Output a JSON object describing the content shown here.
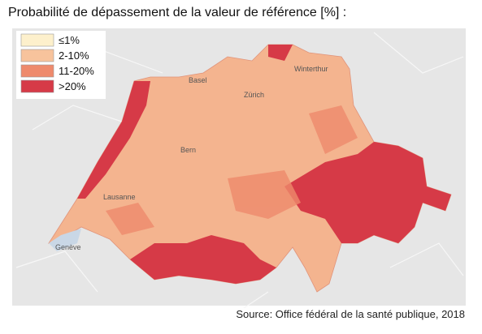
{
  "title": "Probabilité de dépassement de la valeur de référence [%] :",
  "legend": {
    "items": [
      {
        "label": "≤1%",
        "color": "#fdf0cc"
      },
      {
        "label": "2-10%",
        "color": "#f7c39c"
      },
      {
        "label": "11-20%",
        "color": "#ee8a6c"
      },
      {
        "label": ">20%",
        "color": "#d63a47"
      }
    ]
  },
  "cities": [
    "Basel",
    "Winterthur",
    "Zürich",
    "Bern",
    "Lausanne",
    "Genève"
  ],
  "source": "Source: Office fédéral de la santé publique, 2018"
}
